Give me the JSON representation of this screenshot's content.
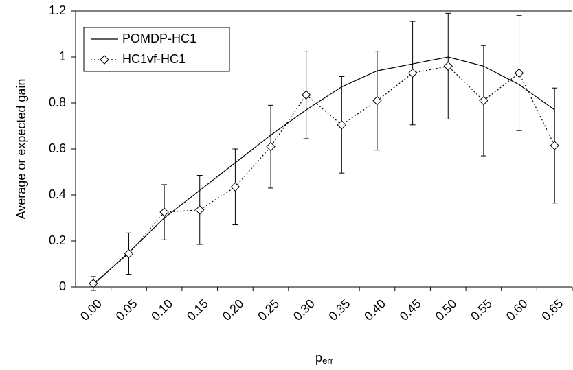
{
  "chart_data": {
    "type": "line",
    "y_label": "Average or expected gain",
    "x_label": "p",
    "x_label_subscript": "err",
    "categories": [
      "0.00",
      "0.05",
      "0.10",
      "0.15",
      "0.20",
      "0.25",
      "0.30",
      "0.35",
      "0.40",
      "0.45",
      "0.50",
      "0.55",
      "0.60",
      "0.65"
    ],
    "series": [
      {
        "name": "POMDP-HC1",
        "color": "#000000",
        "style": "solid",
        "values": [
          0.01,
          0.15,
          0.3,
          0.42,
          0.54,
          0.66,
          0.77,
          0.87,
          0.94,
          0.97,
          1.0,
          0.96,
          0.88,
          0.77
        ]
      },
      {
        "name": "HC1vf-HC1",
        "color": "#000000",
        "style": "dotted",
        "marker": "diamond",
        "values": [
          0.015,
          0.145,
          0.325,
          0.335,
          0.435,
          0.61,
          0.835,
          0.705,
          0.81,
          0.93,
          0.96,
          0.81,
          0.93,
          0.615
        ],
        "errors": [
          0.03,
          0.09,
          0.12,
          0.15,
          0.165,
          0.18,
          0.19,
          0.21,
          0.215,
          0.225,
          0.23,
          0.24,
          0.25,
          0.25
        ]
      }
    ],
    "ylim": [
      0,
      1.2
    ],
    "yticks": [
      0,
      0.2,
      0.4,
      0.6,
      0.8,
      1,
      1.2
    ],
    "grid": false,
    "legend": "upper-left"
  }
}
